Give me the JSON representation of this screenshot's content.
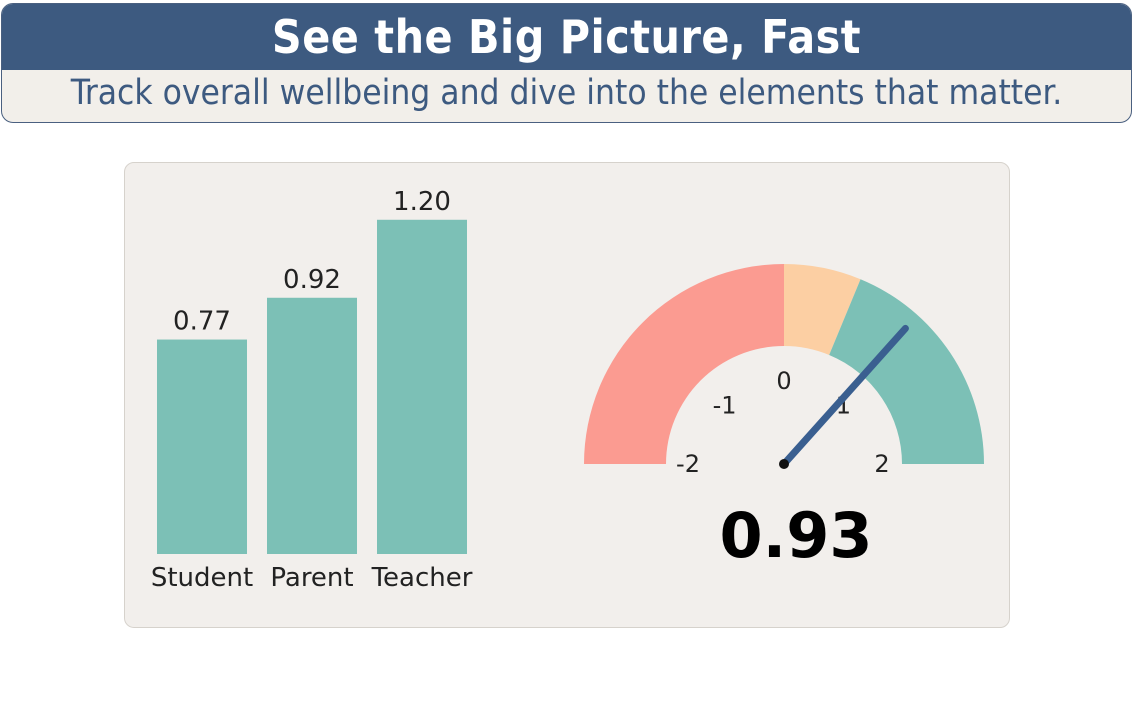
{
  "banner": {
    "title": "See the Big Picture, Fast",
    "subtitle": "Track overall wellbeing and dive into the elements that matter."
  },
  "colors": {
    "banner_bg": "#3d5a80",
    "bar": "#7cc0b6",
    "gauge_low": "#fb9b91",
    "gauge_mid": "#fccfa3",
    "gauge_high": "#7cc0b6",
    "needle": "#3a5f90"
  },
  "chart_data": [
    {
      "type": "bar",
      "categories": [
        "Student",
        "Parent",
        "Teacher"
      ],
      "values": [
        0.77,
        0.92,
        1.2
      ],
      "value_labels": [
        "0.77",
        "0.92",
        "1.20"
      ],
      "ylim": [
        0,
        1.35
      ],
      "grid": false
    },
    {
      "type": "gauge",
      "min": -2,
      "max": 2,
      "value": 0.93,
      "value_label": "0.93",
      "ticks": [
        -2,
        -1,
        0,
        1,
        2
      ],
      "tick_labels": [
        "-2",
        "-1",
        "0",
        "1",
        "2"
      ],
      "bands": [
        {
          "from": -2,
          "to": 0,
          "color": "#fb9b91"
        },
        {
          "from": 0,
          "to": 0.5,
          "color": "#fccfa3"
        },
        {
          "from": 0.5,
          "to": 2,
          "color": "#7cc0b6"
        }
      ]
    }
  ]
}
